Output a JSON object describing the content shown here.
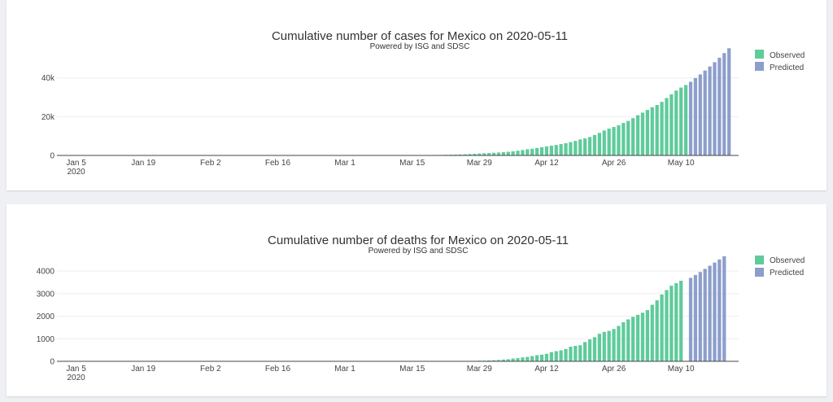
{
  "charts": [
    {
      "id": "cases",
      "title": "Cumulative number of cases for Mexico on 2020-05-11",
      "subtitle": "Powered by ISG and SDSC",
      "legend": [
        "Observed",
        "Predicted"
      ]
    },
    {
      "id": "deaths",
      "title": "Cumulative number of deaths for Mexico on 2020-05-11",
      "subtitle": "Powered by ISG and SDSC",
      "legend": [
        "Observed",
        "Predicted"
      ]
    }
  ],
  "colors": {
    "observed": "#5fcb9b",
    "predicted": "#8c9ecb",
    "background": "#ffffff",
    "page": "#eef0f3"
  },
  "chart_data": [
    {
      "type": "bar",
      "title": "Cumulative number of cases for Mexico on 2020-05-11",
      "subtitle": "Powered by ISG and SDSC",
      "xlabel": "",
      "ylabel": "",
      "x_range": [
        "2020-01-01",
        "2020-05-22"
      ],
      "ylim": [
        0,
        55000
      ],
      "yticks": [
        0,
        20000,
        40000
      ],
      "ytick_labels": [
        "0",
        "20k",
        "40k"
      ],
      "xtick_dates": [
        "2020-01-05",
        "2020-01-19",
        "2020-02-02",
        "2020-02-16",
        "2020-03-01",
        "2020-03-15",
        "2020-03-29",
        "2020-04-12",
        "2020-04-26",
        "2020-05-10"
      ],
      "xtick_labels": [
        "Jan 5",
        "Jan 19",
        "Feb 2",
        "Feb 16",
        "Mar 1",
        "Mar 15",
        "Mar 29",
        "Apr 12",
        "Apr 26",
        "May 10"
      ],
      "xtick_sublabel": "2020",
      "legend_position": "top-right",
      "grid": true,
      "series": [
        {
          "name": "Observed",
          "color": "#5fcb9b",
          "start_date": "2020-03-01",
          "values": [
            5,
            5,
            5,
            5,
            6,
            7,
            7,
            7,
            8,
            11,
            12,
            15,
            25,
            41,
            53,
            82,
            93,
            118,
            164,
            203,
            251,
            316,
            367,
            405,
            475,
            585,
            717,
            848,
            993,
            1094,
            1215,
            1378,
            1510,
            1688,
            1890,
            2143,
            2439,
            2785,
            3181,
            3441,
            3844,
            4219,
            4661,
            5014,
            5399,
            5847,
            6297,
            6875,
            7497,
            8261,
            8772,
            9501,
            10544,
            11633,
            12872,
            13842,
            14677,
            15529,
            16752,
            17799,
            19224,
            20739,
            22088,
            23471,
            24905,
            26025,
            27634,
            29616,
            31522,
            33460,
            35022,
            36327
          ]
        },
        {
          "name": "Predicted",
          "color": "#8c9ecb",
          "start_date": "2020-05-12",
          "values": [
            38000,
            39900,
            41800,
            43800,
            45900,
            48100,
            50400,
            52800,
            55300
          ]
        }
      ]
    },
    {
      "type": "bar",
      "title": "Cumulative number of deaths for Mexico on 2020-05-11",
      "subtitle": "Powered by ISG and SDSC",
      "xlabel": "",
      "ylabel": "",
      "x_range": [
        "2020-01-01",
        "2020-05-22"
      ],
      "ylim": [
        0,
        4800
      ],
      "yticks": [
        0,
        1000,
        2000,
        3000,
        4000
      ],
      "ytick_labels": [
        "0",
        "1000",
        "2000",
        "3000",
        "4000"
      ],
      "xtick_dates": [
        "2020-01-05",
        "2020-01-19",
        "2020-02-02",
        "2020-02-16",
        "2020-03-01",
        "2020-03-15",
        "2020-03-29",
        "2020-04-12",
        "2020-04-26",
        "2020-05-10"
      ],
      "xtick_labels": [
        "Jan 5",
        "Jan 19",
        "Feb 2",
        "Feb 16",
        "Mar 1",
        "Mar 15",
        "Mar 29",
        "Apr 12",
        "Apr 26",
        "May 10"
      ],
      "xtick_sublabel": "2020",
      "legend_position": "top-right",
      "grid": true,
      "series": [
        {
          "name": "Observed",
          "color": "#5fcb9b",
          "start_date": "2020-03-18",
          "values": [
            1,
            1,
            2,
            2,
            4,
            5,
            6,
            8,
            12,
            16,
            20,
            28,
            29,
            37,
            50,
            60,
            79,
            94,
            125,
            141,
            174,
            194,
            233,
            273,
            296,
            332,
            406,
            449,
            486,
            546,
            650,
            686,
            712,
            857,
            970,
            1069,
            1221,
            1305,
            1351,
            1434,
            1569,
            1732,
            1859,
            1972,
            2061,
            2154,
            2271,
            2507,
            2704,
            2961,
            3160,
            3353,
            3465,
            3573
          ]
        },
        {
          "name": "Predicted",
          "color": "#8c9ecb",
          "start_date": "2020-05-12",
          "values": [
            3700,
            3830,
            3960,
            4100,
            4240,
            4380,
            4520,
            4660
          ]
        }
      ]
    }
  ]
}
